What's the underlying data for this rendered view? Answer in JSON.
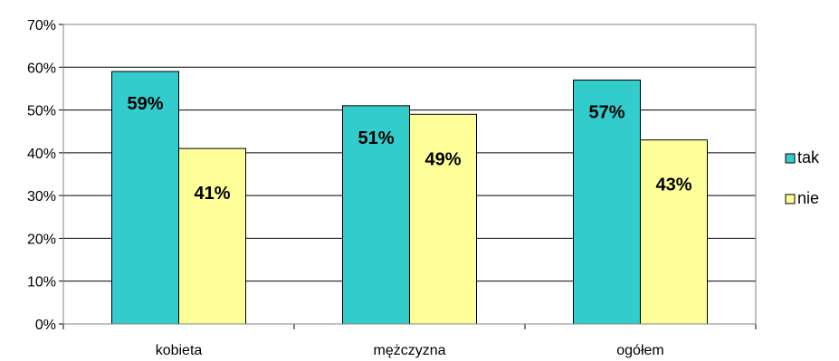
{
  "chart_data": {
    "type": "bar",
    "categories": [
      "kobieta",
      "mężczyzna",
      "ogółem"
    ],
    "series": [
      {
        "name": "tak",
        "values": [
          59,
          51,
          57
        ],
        "labels": [
          "59%",
          "51%",
          "57%"
        ],
        "color": "#33CCCC"
      },
      {
        "name": "nie",
        "values": [
          41,
          49,
          43
        ],
        "labels": [
          "41%",
          "49%",
          "43%"
        ],
        "color": "#FFFF99"
      }
    ],
    "yticks": [
      "0%",
      "10%",
      "20%",
      "30%",
      "40%",
      "50%",
      "60%",
      "70%"
    ],
    "ylim": [
      0,
      70
    ],
    "grid": true,
    "legend_position": "right"
  }
}
